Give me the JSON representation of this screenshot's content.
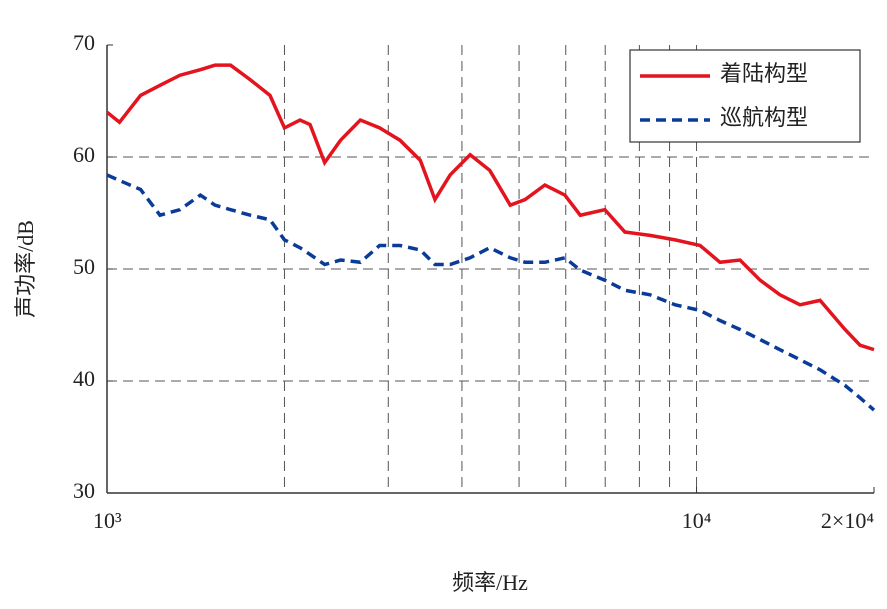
{
  "chart_data": {
    "type": "line",
    "xlabel": "频率/Hz",
    "ylabel": "声功率/dB",
    "xscale": "log",
    "xlim": [
      1000,
      20000
    ],
    "ylim": [
      30,
      70
    ],
    "xticks": [
      {
        "value": 1000,
        "label": "10³"
      },
      {
        "value": 10000,
        "label": "10⁴"
      },
      {
        "value": 20000,
        "label": "2×10⁴"
      }
    ],
    "xgrid": [
      2000,
      3000,
      4000,
      5000,
      6000,
      7000,
      8000,
      9000,
      10000
    ],
    "yticks": [
      30,
      40,
      50,
      60,
      70
    ],
    "ygrid": [
      40,
      50,
      60
    ],
    "grid": true,
    "legend": "upper right",
    "x": [
      1000,
      1050,
      1140,
      1230,
      1330,
      1440,
      1525,
      1620,
      1750,
      1890,
      2000,
      2125,
      2210,
      2340,
      2490,
      2690,
      2900,
      3140,
      3400,
      3600,
      3820,
      4130,
      4460,
      4830,
      5120,
      5530,
      5980,
      6350,
      6990,
      7560,
      8340,
      9200,
      10140,
      10960,
      11850,
      12820,
      13850,
      14980,
      16200,
      17860,
      18940,
      20000
    ],
    "series": [
      {
        "name": "着陆构型",
        "color": "#e3141e",
        "dash": false,
        "values": [
          64.0,
          63.1,
          65.5,
          66.4,
          67.3,
          67.8,
          68.2,
          68.2,
          66.9,
          65.5,
          62.6,
          63.3,
          62.9,
          59.5,
          61.5,
          63.3,
          62.6,
          61.5,
          59.7,
          56.2,
          58.4,
          60.2,
          58.8,
          55.7,
          56.2,
          57.5,
          56.6,
          54.8,
          55.3,
          53.3,
          53.0,
          52.6,
          52.1,
          50.6,
          50.8,
          49.0,
          47.7,
          46.8,
          47.2,
          44.6,
          43.2,
          42.8
        ]
      },
      {
        "name": "巡航构型",
        "color": "#0b3b98",
        "dash": true,
        "values": [
          58.4,
          57.9,
          57.1,
          54.8,
          55.3,
          56.6,
          55.7,
          55.3,
          54.8,
          54.4,
          52.6,
          51.9,
          51.3,
          50.4,
          50.8,
          50.6,
          52.1,
          52.1,
          51.7,
          50.4,
          50.4,
          51.0,
          51.9,
          51.0,
          50.6,
          50.6,
          51.0,
          49.9,
          49.0,
          48.1,
          47.7,
          46.8,
          46.3,
          45.4,
          44.6,
          43.7,
          42.8,
          41.9,
          41.0,
          39.6,
          38.5,
          37.4
        ]
      }
    ]
  }
}
